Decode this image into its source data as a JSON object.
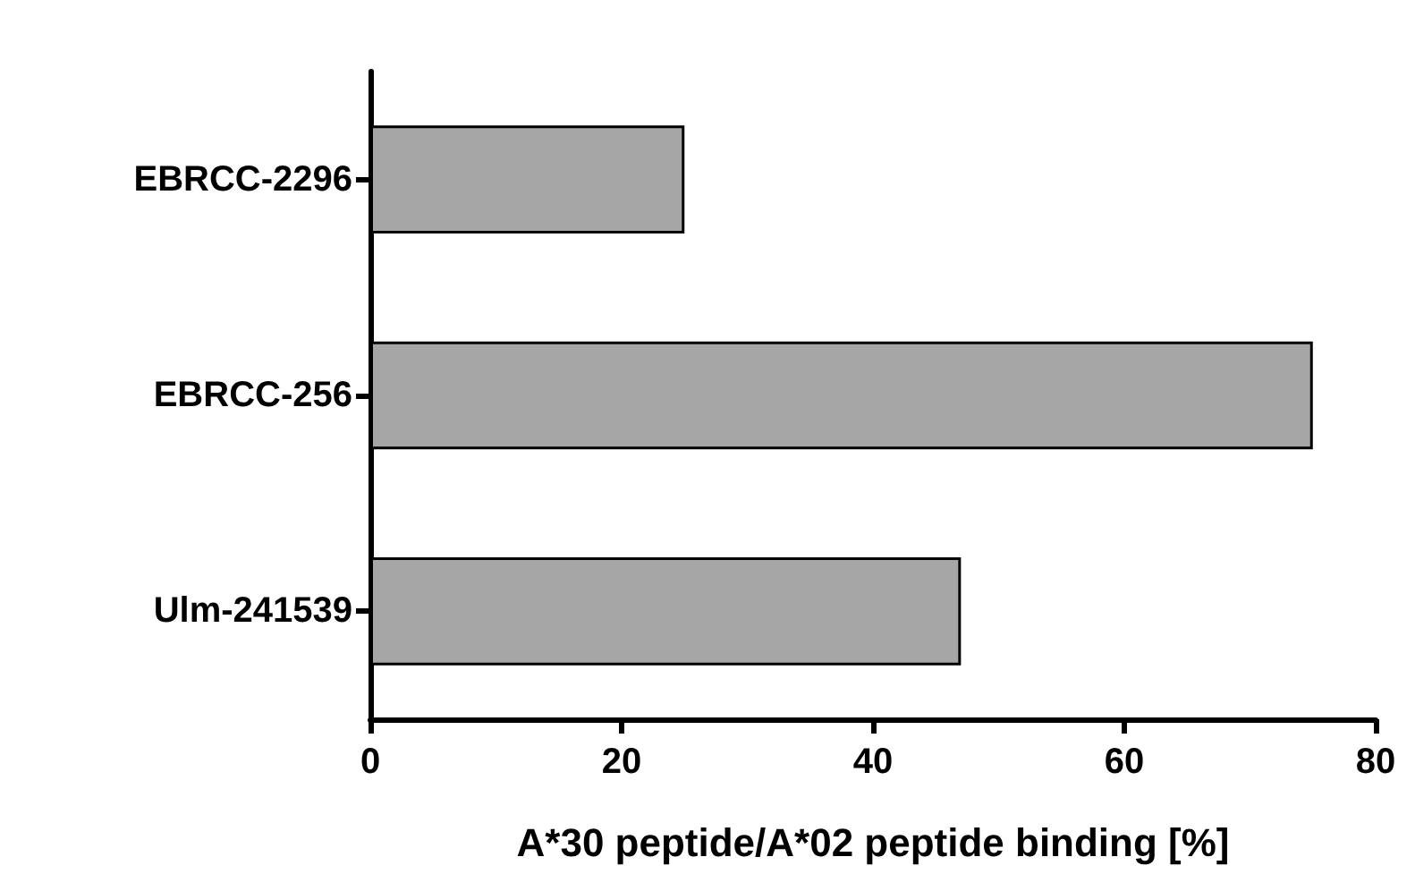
{
  "chart_data": {
    "type": "bar",
    "orientation": "horizontal",
    "xlabel": "A*30 peptide/A*02 peptide binding [%]",
    "categories": [
      "EBRCC-2296",
      "EBRCC-256",
      "Ulm-241539"
    ],
    "values": [
      25,
      75,
      47
    ],
    "color": "#a6a6a6",
    "xlim": [
      0,
      80
    ],
    "xticks": [
      0,
      20,
      40,
      60,
      80
    ],
    "grid": false
  }
}
